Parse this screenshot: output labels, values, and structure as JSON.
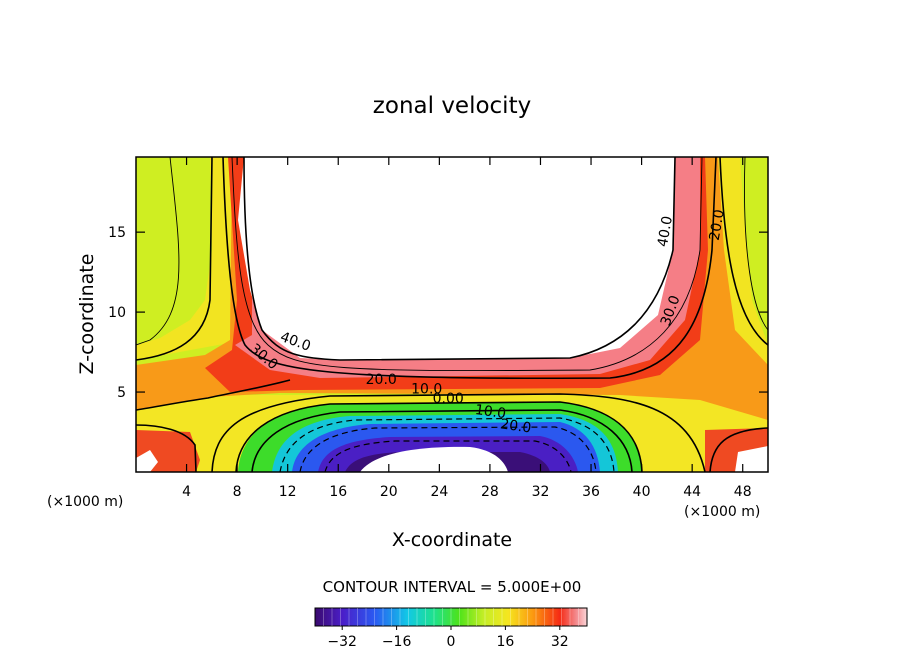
{
  "chart_data": {
    "type": "contour",
    "title": "zonal velocity",
    "xlabel": "X-coordinate",
    "ylabel": "Z-coordinate",
    "x_unit_left": "(×1000 m)",
    "x_unit_right": "(×1000 m)",
    "xlim": [
      0,
      50
    ],
    "ylim": [
      0,
      19.7
    ],
    "x_ticks": [
      4,
      8,
      12,
      16,
      20,
      24,
      28,
      32,
      36,
      40,
      44,
      48
    ],
    "y_ticks": [
      5,
      10,
      15
    ],
    "contour_interval_text": "CONTOUR INTERVAL = 5.000E+00",
    "contour_interval": 5.0,
    "contour_labels": [
      {
        "text": "40.0",
        "x": 42.2,
        "y": 15.0,
        "angle": -80
      },
      {
        "text": "20.0",
        "x": 46.3,
        "y": 15.4,
        "angle": -80
      },
      {
        "text": "30.0",
        "x": 42.6,
        "y": 10.0,
        "angle": -70
      },
      {
        "text": "40.0",
        "x": 12.5,
        "y": 7.9,
        "angle": 20
      },
      {
        "text": "30.0",
        "x": 9.9,
        "y": 7.0,
        "angle": 40
      },
      {
        "text": "20.0",
        "x": 19.4,
        "y": 5.5,
        "angle": 0
      },
      {
        "text": "10.0",
        "x": 23.0,
        "y": 4.9,
        "angle": 0
      },
      {
        "text": "0.00",
        "x": 24.7,
        "y": 4.3,
        "angle": 0
      },
      {
        "text": "10.0",
        "x": 28.0,
        "y": 3.5,
        "angle": 8
      },
      {
        "text": "20.0",
        "x": 30.0,
        "y": 2.6,
        "angle": 8
      }
    ],
    "colorbar": {
      "min": -40,
      "max": 40,
      "ticks": [
        -32,
        -16,
        0,
        16,
        32
      ],
      "tick_labels": [
        "−32",
        "−16",
        "0",
        "16",
        "32"
      ]
    }
  }
}
